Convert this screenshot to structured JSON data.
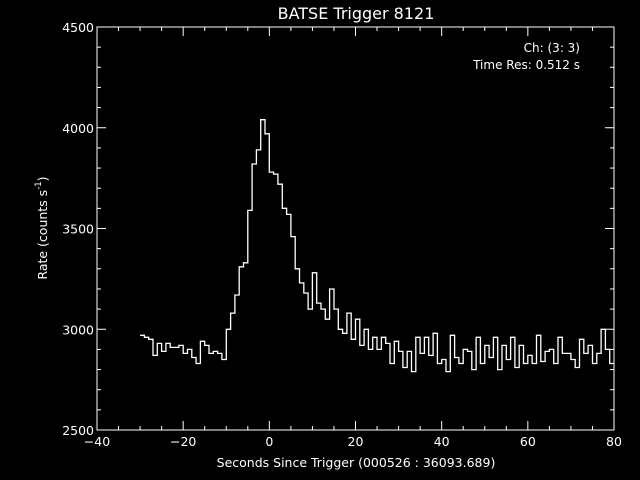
{
  "chart_data": {
    "type": "line",
    "title": "BATSE Trigger 8121",
    "xlabel": "Seconds Since Trigger (000526 : 36093.689)",
    "ylabel_main": "Rate (counts s",
    "ylabel_sup": "-1",
    "ylabel_close": ")",
    "annotations": [
      "Ch: (3: 3)",
      "Time Res: 0.512 s"
    ],
    "xlim": [
      -40,
      80
    ],
    "ylim": [
      2500,
      4500
    ],
    "xticks": [
      -40,
      -20,
      0,
      20,
      40,
      60,
      80
    ],
    "yticks": [
      2500,
      3000,
      3500,
      4000,
      4500
    ],
    "x_minor_step": 5,
    "y_minor_step": 100,
    "grid": false,
    "style": {
      "background": "#000000",
      "foreground": "#ffffff",
      "line": "#ffffff"
    },
    "series": [
      {
        "x": [
          -30.0,
          -29.0,
          -28.0,
          -27.0,
          -26.0,
          -25.0,
          -24.0,
          -23.0,
          -22.0,
          -21.0,
          -20.0,
          -19.0,
          -18.0,
          -17.0,
          -16.0,
          -15.0,
          -14.0,
          -13.0,
          -12.0,
          -11.0,
          -10.0,
          -9.0,
          -8.0,
          -7.0,
          -6.0,
          -5.0,
          -4.0,
          -3.0,
          -2.0,
          -1.0,
          0.0,
          1.0,
          2.0,
          3.0,
          4.0,
          5.0,
          6.0,
          7.0,
          8.0,
          9.0,
          10.0,
          11.0,
          12.0,
          13.0,
          14.0,
          15.0,
          16.0,
          17.0,
          18.0,
          19.0,
          20.0,
          21.0,
          22.0,
          23.0,
          24.0,
          25.0,
          26.0,
          27.0,
          28.0,
          29.0,
          30.0,
          31.0,
          32.0,
          33.0,
          34.0,
          35.0,
          36.0,
          37.0,
          38.0,
          39.0,
          40.0,
          41.0,
          42.0,
          43.0,
          44.0,
          45.0,
          46.0,
          47.0,
          48.0,
          49.0,
          50.0,
          51.0,
          52.0,
          53.0,
          54.0,
          55.0,
          56.0,
          57.0,
          58.0,
          59.0,
          60.0,
          61.0,
          62.0,
          63.0,
          64.0,
          65.0,
          66.0,
          67.0,
          68.0,
          69.0,
          70.0,
          71.0,
          72.0,
          73.0,
          74.0,
          75.0,
          76.0,
          77.0,
          78.0,
          79.0
        ],
        "y": [
          2970,
          2960,
          2950,
          2870,
          2930,
          2890,
          2930,
          2910,
          2910,
          2920,
          2880,
          2900,
          2860,
          2830,
          2940,
          2920,
          2880,
          2890,
          2880,
          2850,
          3000,
          3080,
          3170,
          3310,
          3330,
          3590,
          3820,
          3890,
          4040,
          3970,
          3780,
          3770,
          3720,
          3600,
          3570,
          3460,
          3300,
          3230,
          3180,
          3100,
          3280,
          3130,
          3100,
          3050,
          3200,
          3100,
          3000,
          2980,
          3080,
          2950,
          3050,
          2920,
          3000,
          2900,
          2960,
          2900,
          2960,
          2930,
          2830,
          2940,
          2890,
          2810,
          2890,
          2790,
          2960,
          2880,
          2960,
          2870,
          2980,
          2830,
          2850,
          2790,
          2970,
          2860,
          2830,
          2900,
          2890,
          2800,
          2960,
          2830,
          2920,
          2860,
          2960,
          2800,
          2920,
          2850,
          2960,
          2810,
          2920,
          2830,
          2870,
          2830,
          2970,
          2840,
          2890,
          2900,
          2830,
          2960,
          2880,
          2880,
          2850,
          2810,
          2950,
          2880,
          2920,
          2830,
          2880,
          3000,
          2900,
          2830
        ]
      }
    ]
  }
}
